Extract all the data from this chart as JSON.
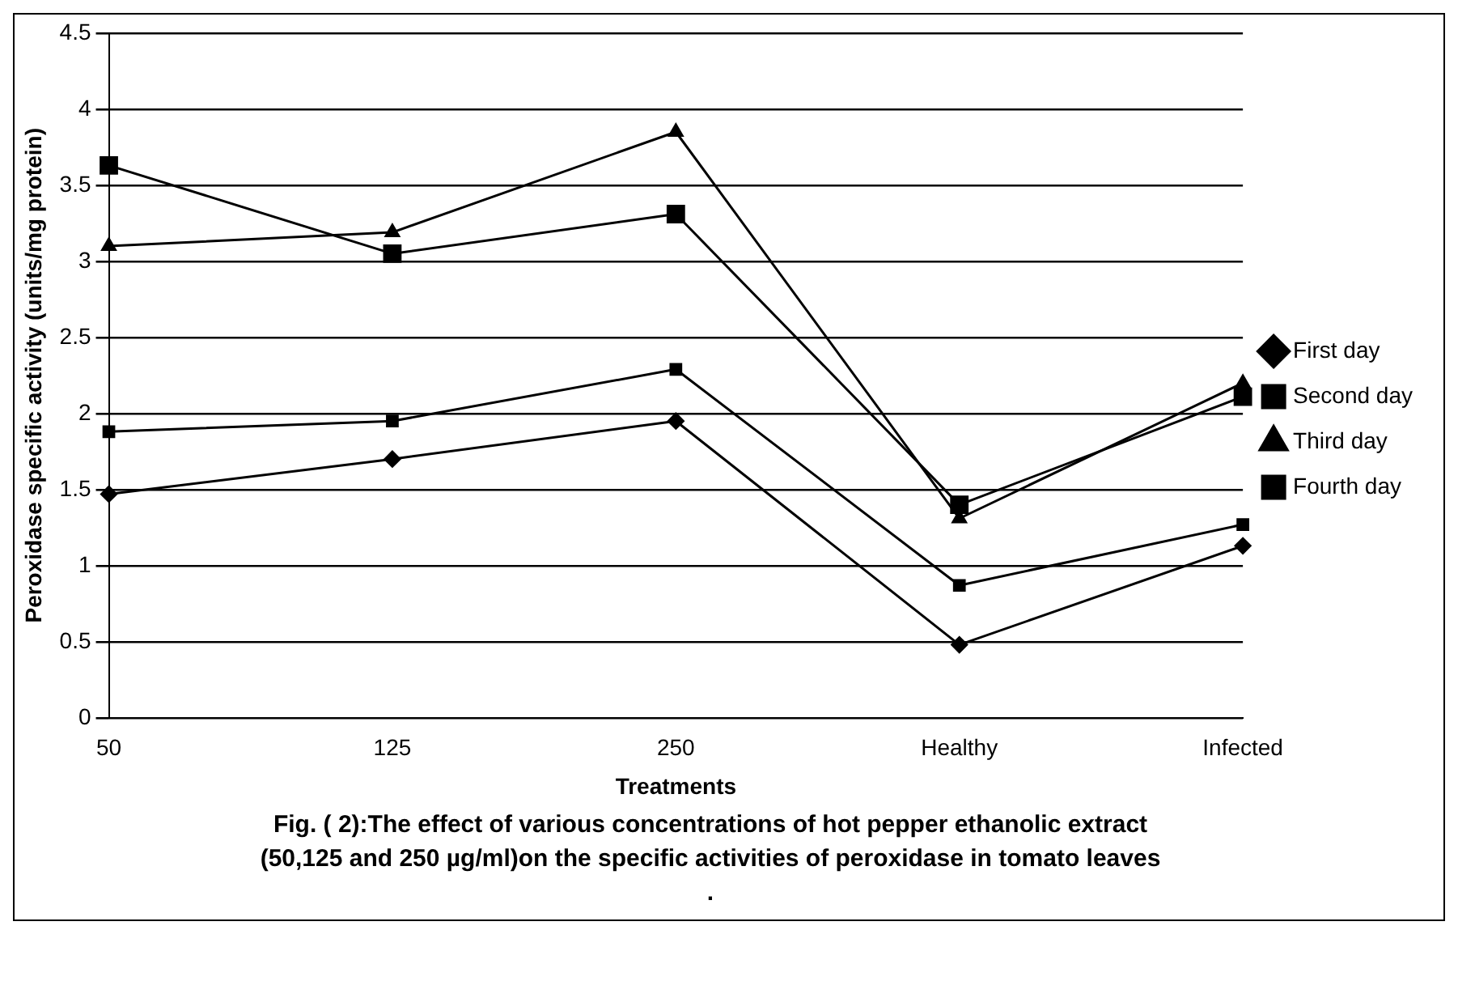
{
  "chart_data": {
    "type": "line",
    "xlabel": "Treatments",
    "ylabel": "Peroxidase specific activity (units/mg protein)",
    "categories": [
      "50",
      "125",
      "250",
      "Healthy",
      "Infected"
    ],
    "series": [
      {
        "name": "First day",
        "color": "#000000",
        "marker": "diamond",
        "values": [
          1.47,
          1.7,
          1.95,
          0.48,
          1.13
        ]
      },
      {
        "name": "Second day",
        "color": "#000000",
        "marker": "square",
        "values": [
          1.88,
          1.95,
          2.29,
          0.87,
          1.27
        ]
      },
      {
        "name": "Third day",
        "color": "#000000",
        "marker": "triangle",
        "values": [
          3.1,
          3.19,
          3.85,
          1.31,
          2.2
        ]
      },
      {
        "name": "Fourth day",
        "color": "#000000",
        "marker": "square",
        "values": [
          3.63,
          3.05,
          3.31,
          1.4,
          2.11
        ]
      }
    ],
    "ylim": [
      0,
      4.5
    ],
    "yticks": [
      0,
      0.5,
      1,
      1.5,
      2,
      2.5,
      3,
      3.5,
      4,
      4.5
    ],
    "grid": "y",
    "legend": "right",
    "annotations": [
      "Fig. ( 2):The effect of various concentrations of hot pepper ethanolic extract (50,125 and 250 µg/ml)on the specific activities of peroxidase in tomato leaves ."
    ]
  }
}
